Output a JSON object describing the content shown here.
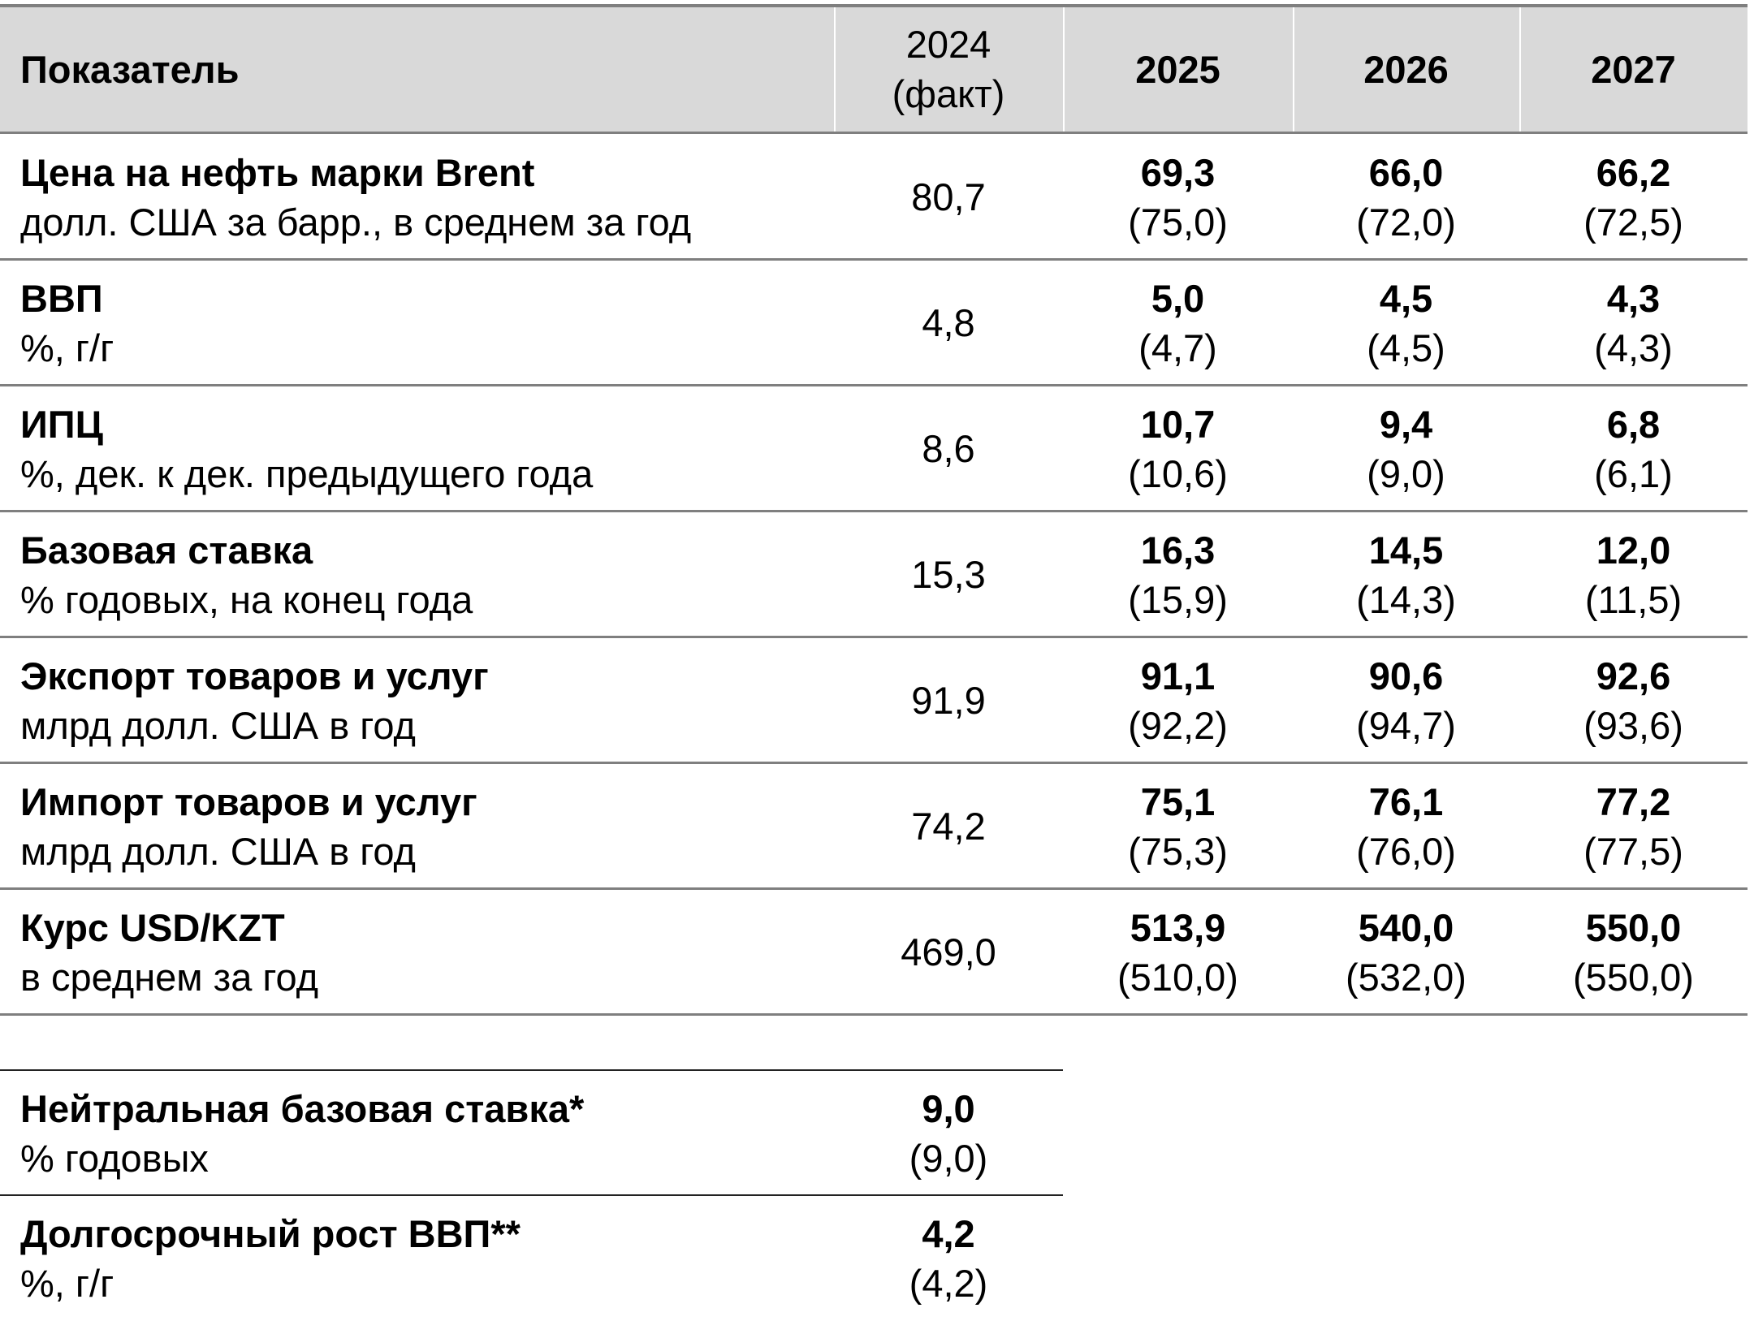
{
  "header": {
    "columns": [
      [
        "Показатель"
      ],
      [
        "2024",
        "(факт)"
      ],
      [
        "2025"
      ],
      [
        "2026"
      ],
      [
        "2027"
      ]
    ]
  },
  "rows": [
    {
      "name": "Цена на нефть марки Brent",
      "unit": "долл. США за барр., в среднем за год",
      "fact": "80,7",
      "forecasts": [
        {
          "value": "69,3",
          "previous": "(75,0)"
        },
        {
          "value": "66,0",
          "previous": "(72,0)"
        },
        {
          "value": "66,2",
          "previous": "(72,5)"
        }
      ]
    },
    {
      "name": "ВВП",
      "unit": "%, г/г",
      "fact": "4,8",
      "forecasts": [
        {
          "value": "5,0",
          "previous": "(4,7)"
        },
        {
          "value": "4,5",
          "previous": "(4,5)"
        },
        {
          "value": "4,3",
          "previous": "(4,3)"
        }
      ]
    },
    {
      "name": "ИПЦ",
      "unit": "%, дек. к дек. предыдущего года",
      "fact": "8,6",
      "forecasts": [
        {
          "value": "10,7",
          "previous": "(10,6)"
        },
        {
          "value": "9,4",
          "previous": "(9,0)"
        },
        {
          "value": "6,8",
          "previous": "(6,1)"
        }
      ]
    },
    {
      "name": "Базовая ставка",
      "unit": "% годовых, на конец года",
      "fact": "15,3",
      "forecasts": [
        {
          "value": "16,3",
          "previous": "(15,9)"
        },
        {
          "value": "14,5",
          "previous": "(14,3)"
        },
        {
          "value": "12,0",
          "previous": "(11,5)"
        }
      ]
    },
    {
      "name": "Экспорт товаров и услуг",
      "unit": "млрд долл. США в год",
      "fact": "91,9",
      "forecasts": [
        {
          "value": "91,1",
          "previous": "(92,2)"
        },
        {
          "value": "90,6",
          "previous": "(94,7)"
        },
        {
          "value": "92,6",
          "previous": "(93,6)"
        }
      ]
    },
    {
      "name": "Импорт товаров и услуг",
      "unit": "млрд долл. США в год",
      "fact": "74,2",
      "forecasts": [
        {
          "value": "75,1",
          "previous": "(75,3)"
        },
        {
          "value": "76,1",
          "previous": "(76,0)"
        },
        {
          "value": "77,2",
          "previous": "(77,5)"
        }
      ]
    },
    {
      "name": "Курс USD/KZT",
      "unit": "в среднем за год",
      "fact": "469,0",
      "forecasts": [
        {
          "value": "513,9",
          "previous": "(510,0)"
        },
        {
          "value": "540,0",
          "previous": "(532,0)"
        },
        {
          "value": "550,0",
          "previous": "(550,0)"
        }
      ]
    }
  ],
  "extra": [
    {
      "name": "Нейтральная базовая ставка*",
      "unit": "% годовых",
      "value": "9,0",
      "previous": "(9,0)"
    },
    {
      "name": "Долгосрочный рост ВВП**",
      "unit": "%, г/г",
      "value": "4,2",
      "previous": "(4,2)"
    }
  ]
}
